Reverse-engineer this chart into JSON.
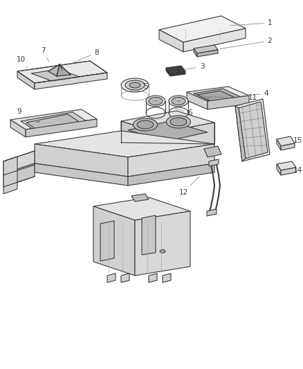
{
  "background_color": "#ffffff",
  "line_color": "#3a3a3a",
  "label_color": "#3a3a3a",
  "fig_width": 4.38,
  "fig_height": 5.33,
  "dpi": 100,
  "lw": 0.8,
  "label_fs": 7.5
}
